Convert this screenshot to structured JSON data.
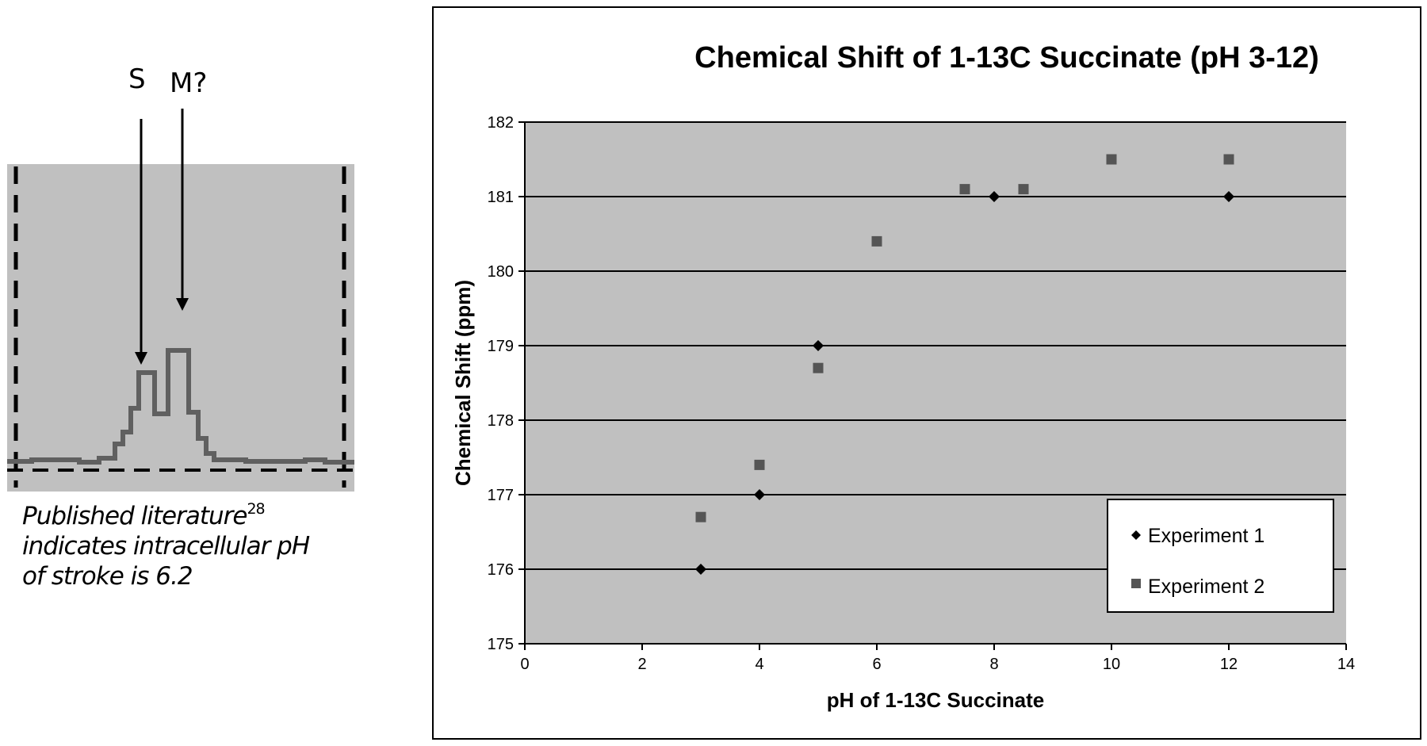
{
  "spectrum": {
    "label_s": "S",
    "label_m": "M?",
    "caption_line1": "Published literature",
    "caption_ref": "28",
    "caption_line2": "indicates intracellular pH",
    "caption_line3": "of stroke is 6.2",
    "colors": {
      "background": "#c0c0c0",
      "trace": "#606060"
    }
  },
  "chart_data": {
    "type": "scatter",
    "title": "Chemical Shift of 1-13C Succinate (pH 3-12)",
    "xlabel": "pH of 1-13C Succinate",
    "ylabel": "Chemical Shift (ppm)",
    "xlim": [
      0,
      14
    ],
    "ylim": [
      175,
      182
    ],
    "x_ticks": [
      0,
      2,
      4,
      6,
      8,
      10,
      12,
      14
    ],
    "y_ticks": [
      175,
      176,
      177,
      178,
      179,
      180,
      181,
      182
    ],
    "grid": "horizontal",
    "legend_position": "bottom-right",
    "plot_background": "#c0c0c0",
    "series": [
      {
        "name": "Experiment 1",
        "marker": "diamond",
        "color": "#000000",
        "points": [
          {
            "x": 3,
            "y": 176
          },
          {
            "x": 4,
            "y": 177
          },
          {
            "x": 5,
            "y": 179
          },
          {
            "x": 8,
            "y": 181
          },
          {
            "x": 12,
            "y": 181
          }
        ]
      },
      {
        "name": "Experiment 2",
        "marker": "square",
        "color": "#555555",
        "points": [
          {
            "x": 3,
            "y": 176.7
          },
          {
            "x": 4,
            "y": 177.4
          },
          {
            "x": 5,
            "y": 178.7
          },
          {
            "x": 6,
            "y": 180.4
          },
          {
            "x": 7.5,
            "y": 181.1
          },
          {
            "x": 8.5,
            "y": 181.1
          },
          {
            "x": 10,
            "y": 181.5
          },
          {
            "x": 12,
            "y": 181.5
          }
        ]
      }
    ]
  }
}
